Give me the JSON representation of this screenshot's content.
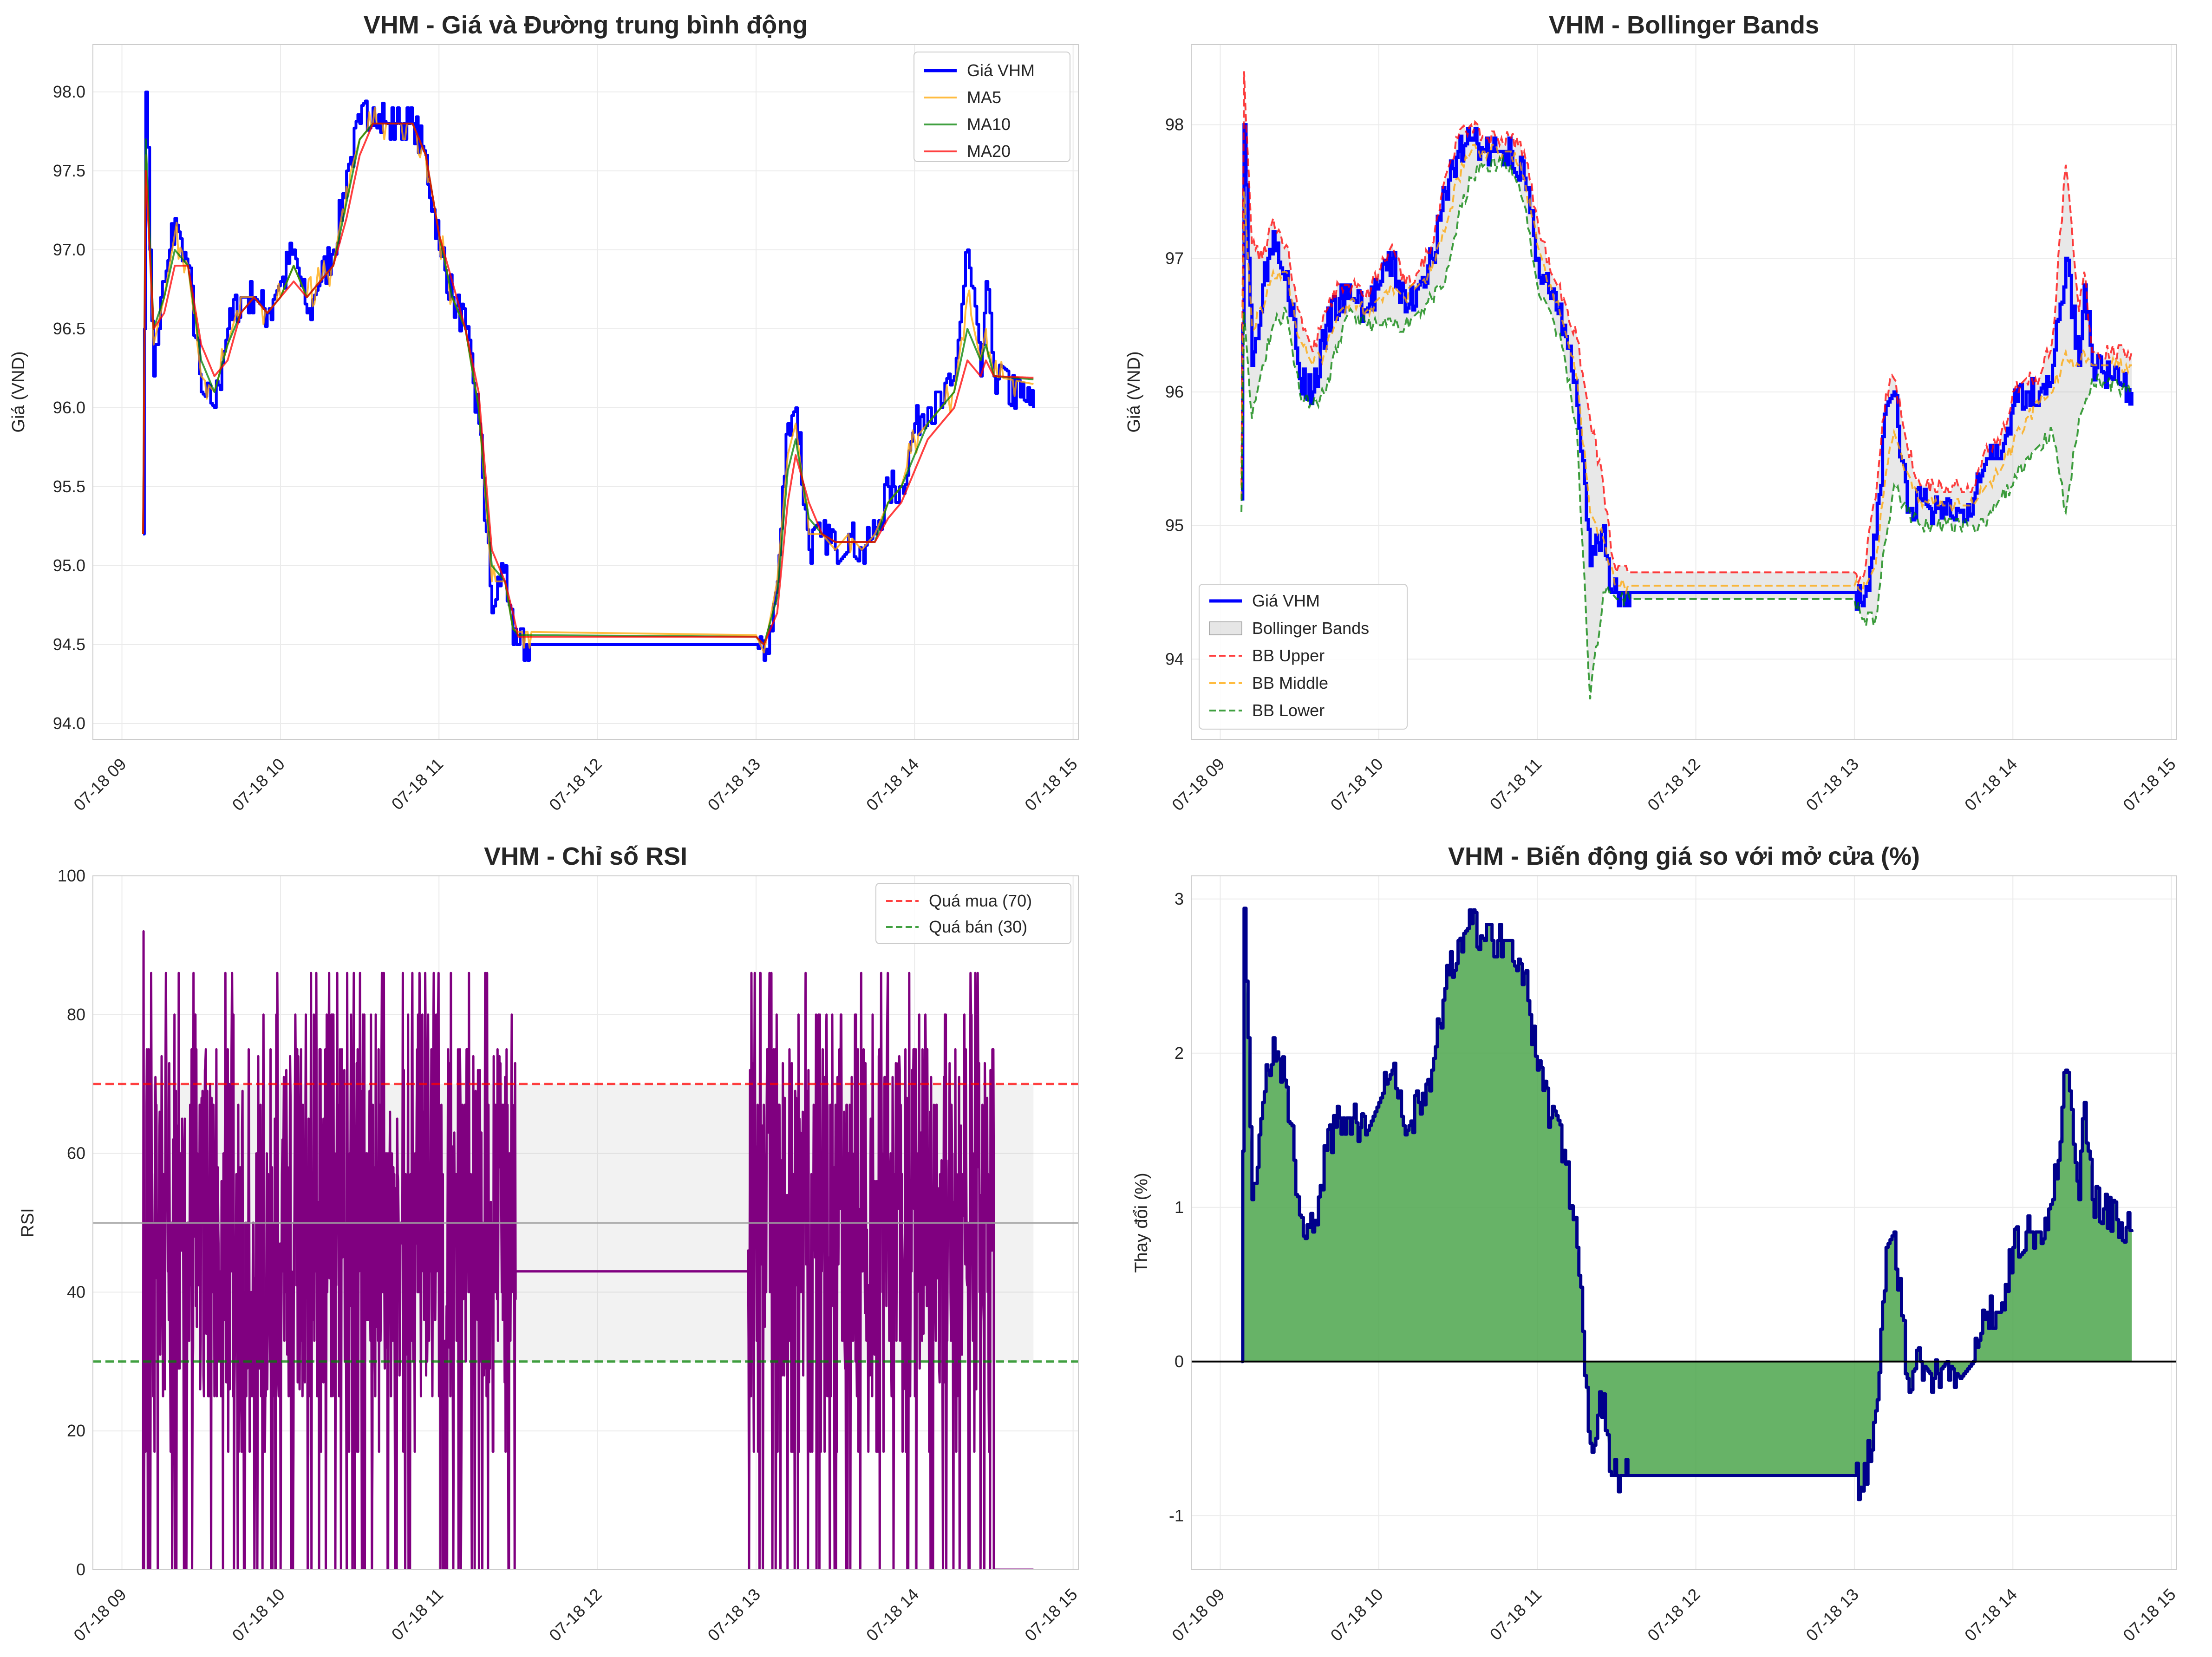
{
  "chart_data": [
    {
      "type": "line",
      "title": "VHM - Giá và Đường trung bình động",
      "xlabel": "",
      "ylabel": "Giá (VND)",
      "x_ticks": [
        "07-18 09",
        "07-18 10",
        "07-18 11",
        "07-18 12",
        "07-18 13",
        "07-18 14",
        "07-18 15"
      ],
      "y_ticks": [
        "94.0",
        "94.5",
        "95.0",
        "95.5",
        "96.0",
        "96.5",
        "97.0",
        "97.5",
        "98.0"
      ],
      "ylim": [
        93.9,
        98.3
      ],
      "grid": true,
      "legend": "top-right",
      "x": [
        "09:08",
        "09:09",
        "09:12",
        "09:16",
        "09:20",
        "09:25",
        "09:30",
        "09:35",
        "09:40",
        "09:45",
        "09:50",
        "09:55",
        "10:00",
        "10:05",
        "10:10",
        "10:15",
        "10:20",
        "10:25",
        "10:30",
        "10:35",
        "10:40",
        "10:45",
        "10:50",
        "10:55",
        "11:00",
        "11:05",
        "11:10",
        "11:15",
        "11:20",
        "11:25",
        "11:28",
        "11:30",
        "11:35",
        "13:00",
        "13:03",
        "13:08",
        "13:12",
        "13:15",
        "13:20",
        "13:25",
        "13:30",
        "13:35",
        "13:40",
        "13:45",
        "13:50",
        "13:55",
        "14:00",
        "14:05",
        "14:10",
        "14:15",
        "14:20",
        "14:25",
        "14:27",
        "14:30",
        "14:45"
      ],
      "series": [
        {
          "name": "Giá VHM",
          "color": "#0000ff",
          "values": [
            95.2,
            98.0,
            96.2,
            96.8,
            97.2,
            96.9,
            96.1,
            96.0,
            96.5,
            96.7,
            96.7,
            96.6,
            96.8,
            97.0,
            96.6,
            96.8,
            97.0,
            97.5,
            97.8,
            97.9,
            97.8,
            97.8,
            97.8,
            97.6,
            97.0,
            96.7,
            96.5,
            95.9,
            94.7,
            95.0,
            94.5,
            94.5,
            94.5,
            94.5,
            94.4,
            94.9,
            95.9,
            96.0,
            95.1,
            95.2,
            95.1,
            95.2,
            95.1,
            95.2,
            95.5,
            95.5,
            95.9,
            96.0,
            96.0,
            96.2,
            97.0,
            96.2,
            96.8,
            96.2,
            96.0
          ]
        },
        {
          "name": "MA5",
          "color": "#ffa500",
          "values": [
            95.2,
            97.6,
            96.4,
            96.7,
            97.1,
            96.9,
            96.2,
            96.1,
            96.4,
            96.7,
            96.7,
            96.6,
            96.7,
            96.9,
            96.7,
            96.8,
            96.9,
            97.4,
            97.7,
            97.8,
            97.8,
            97.8,
            97.8,
            97.6,
            97.1,
            96.7,
            96.5,
            96.0,
            94.9,
            94.9,
            94.6,
            94.58,
            94.58,
            94.56,
            94.45,
            94.9,
            95.7,
            95.9,
            95.2,
            95.2,
            95.1,
            95.2,
            95.1,
            95.2,
            95.4,
            95.5,
            95.8,
            95.9,
            96.0,
            96.1,
            96.7,
            96.3,
            96.5,
            96.2,
            96.15
          ]
        },
        {
          "name": "MA10",
          "color": "#008000",
          "values": [
            95.2,
            97.7,
            96.5,
            96.7,
            97.0,
            96.9,
            96.3,
            96.1,
            96.4,
            96.6,
            96.7,
            96.6,
            96.7,
            96.9,
            96.7,
            96.8,
            96.9,
            97.3,
            97.7,
            97.8,
            97.8,
            97.8,
            97.8,
            97.6,
            97.1,
            96.7,
            96.5,
            96.0,
            95.0,
            94.9,
            94.6,
            94.56,
            94.56,
            94.55,
            94.5,
            94.8,
            95.6,
            95.8,
            95.3,
            95.2,
            95.15,
            95.15,
            95.15,
            95.15,
            95.4,
            95.5,
            95.7,
            95.9,
            96.0,
            96.1,
            96.5,
            96.3,
            96.4,
            96.2,
            96.18
          ]
        },
        {
          "name": "MA20",
          "color": "#ff0000",
          "values": [
            95.2,
            97.5,
            96.5,
            96.6,
            96.9,
            96.9,
            96.4,
            96.2,
            96.3,
            96.6,
            96.7,
            96.6,
            96.7,
            96.8,
            96.7,
            96.8,
            96.9,
            97.2,
            97.6,
            97.8,
            97.8,
            97.8,
            97.8,
            97.6,
            97.1,
            96.8,
            96.5,
            96.1,
            95.1,
            94.9,
            94.7,
            94.55,
            94.55,
            94.55,
            94.5,
            94.7,
            95.4,
            95.7,
            95.4,
            95.2,
            95.15,
            95.15,
            95.15,
            95.15,
            95.3,
            95.4,
            95.6,
            95.8,
            95.9,
            96.0,
            96.3,
            96.2,
            96.3,
            96.2,
            96.19
          ]
        }
      ]
    },
    {
      "type": "line",
      "title": "VHM - Bollinger Bands",
      "xlabel": "",
      "ylabel": "Giá (VND)",
      "x_ticks": [
        "07-18 09",
        "07-18 10",
        "07-18 11",
        "07-18 12",
        "07-18 13",
        "07-18 14",
        "07-18 15"
      ],
      "y_ticks": [
        "94",
        "95",
        "96",
        "97",
        "98"
      ],
      "ylim": [
        93.4,
        98.6
      ],
      "grid": true,
      "legend": "bottom-left",
      "band_legend": "Bollinger Bands",
      "x": [
        "09:08",
        "09:09",
        "09:12",
        "09:16",
        "09:20",
        "09:25",
        "09:30",
        "09:35",
        "09:40",
        "09:45",
        "09:50",
        "09:55",
        "10:00",
        "10:05",
        "10:10",
        "10:15",
        "10:20",
        "10:25",
        "10:30",
        "10:35",
        "10:40",
        "10:45",
        "10:50",
        "10:55",
        "11:00",
        "11:05",
        "11:10",
        "11:15",
        "11:20",
        "11:25",
        "11:28",
        "11:30",
        "11:35",
        "13:00",
        "13:03",
        "13:08",
        "13:12",
        "13:15",
        "13:20",
        "13:25",
        "13:30",
        "13:35",
        "13:40",
        "13:45",
        "13:50",
        "13:55",
        "14:00",
        "14:05",
        "14:10",
        "14:15",
        "14:20",
        "14:25",
        "14:27",
        "14:30",
        "14:45"
      ],
      "series": [
        {
          "name": "Giá VHM",
          "color": "#0000ff",
          "values": [
            95.2,
            98.0,
            96.2,
            96.8,
            97.2,
            96.9,
            96.1,
            96.0,
            96.5,
            96.7,
            96.7,
            96.6,
            96.8,
            97.0,
            96.6,
            96.8,
            97.0,
            97.5,
            97.8,
            97.9,
            97.8,
            97.8,
            97.8,
            97.6,
            97.0,
            96.7,
            96.5,
            95.9,
            94.7,
            95.0,
            94.5,
            94.5,
            94.5,
            94.5,
            94.4,
            94.9,
            95.9,
            96.0,
            95.1,
            95.2,
            95.1,
            95.2,
            95.1,
            95.2,
            95.5,
            95.5,
            95.9,
            96.0,
            96.0,
            96.2,
            97.0,
            96.2,
            96.8,
            96.2,
            96.0
          ]
        },
        {
          "name": "BB Upper",
          "color": "#ff0000",
          "values": [
            95.3,
            98.4,
            97.1,
            97.0,
            97.3,
            97.1,
            96.6,
            96.3,
            96.6,
            96.8,
            96.8,
            96.7,
            96.9,
            97.1,
            96.8,
            96.9,
            97.1,
            97.6,
            97.9,
            98.0,
            97.9,
            97.9,
            97.9,
            97.8,
            97.3,
            96.9,
            96.7,
            96.4,
            95.8,
            95.3,
            94.8,
            94.65,
            94.65,
            94.65,
            94.6,
            95.2,
            96.0,
            96.1,
            95.6,
            95.3,
            95.3,
            95.3,
            95.3,
            95.3,
            95.6,
            95.6,
            96.0,
            96.1,
            96.1,
            96.4,
            97.7,
            96.6,
            96.9,
            96.3,
            96.3
          ]
        },
        {
          "name": "BB Middle",
          "color": "#ffa500",
          "values": [
            95.2,
            97.5,
            96.5,
            96.6,
            96.9,
            96.9,
            96.4,
            96.2,
            96.3,
            96.6,
            96.7,
            96.6,
            96.7,
            96.8,
            96.7,
            96.8,
            96.9,
            97.2,
            97.6,
            97.8,
            97.8,
            97.8,
            97.8,
            97.6,
            97.1,
            96.8,
            96.5,
            96.1,
            95.1,
            94.9,
            94.7,
            94.55,
            94.55,
            94.55,
            94.5,
            94.7,
            95.4,
            95.7,
            95.4,
            95.2,
            95.15,
            95.15,
            95.15,
            95.15,
            95.3,
            95.4,
            95.6,
            95.8,
            95.9,
            96.0,
            96.3,
            96.2,
            96.3,
            96.2,
            96.2
          ]
        },
        {
          "name": "BB Lower",
          "color": "#008000",
          "values": [
            95.1,
            96.6,
            95.8,
            96.2,
            96.5,
            96.6,
            96.0,
            95.9,
            96.0,
            96.4,
            96.6,
            96.5,
            96.5,
            96.5,
            96.5,
            96.6,
            96.7,
            96.8,
            97.3,
            97.6,
            97.7,
            97.7,
            97.7,
            97.4,
            96.8,
            96.6,
            96.3,
            95.7,
            93.7,
            94.5,
            94.5,
            94.45,
            94.45,
            94.45,
            94.3,
            94.3,
            94.9,
            95.3,
            95.1,
            95.0,
            95.0,
            95.0,
            95.0,
            95.0,
            95.0,
            95.2,
            95.3,
            95.5,
            95.6,
            95.7,
            95.1,
            95.8,
            95.9,
            96.1,
            96.0
          ]
        }
      ]
    },
    {
      "type": "line",
      "title": "VHM - Chỉ số RSI",
      "xlabel": "",
      "ylabel": "RSI",
      "x_ticks": [
        "07-18 09",
        "07-18 10",
        "07-18 11",
        "07-18 12",
        "07-18 13",
        "07-18 14",
        "07-18 15"
      ],
      "y_ticks": [
        "0",
        "20",
        "40",
        "60",
        "80",
        "100"
      ],
      "ylim": [
        0,
        100
      ],
      "grid": true,
      "legend": "top-right",
      "reference_lines": [
        {
          "name": "Quá mua (70)",
          "value": 70,
          "color": "#ff0000"
        },
        {
          "name": "Quá bán (30)",
          "value": 30,
          "color": "#008000"
        },
        {
          "name": "",
          "value": 50,
          "color": "#a0a0a0"
        }
      ],
      "band": [
        30,
        70
      ],
      "series": [
        {
          "name": "",
          "color": "#800080",
          "description_free": true,
          "segments": [
            {
              "start": "09:08",
              "end": "11:29",
              "min": 0,
              "max": 92
            },
            {
              "start": "11:29",
              "end": "12:57",
              "flat": 43
            },
            {
              "start": "12:57",
              "end": "14:30",
              "min": 0,
              "max": 86
            },
            {
              "start": "14:30",
              "end": "14:45",
              "flat": 0
            }
          ]
        }
      ]
    },
    {
      "type": "area",
      "title": "VHM - Biến động giá so với mở cửa (%)",
      "xlabel": "",
      "ylabel": "Thay đổi (%)",
      "x_ticks": [
        "07-18 09",
        "07-18 10",
        "07-18 11",
        "07-18 12",
        "07-18 13",
        "07-18 14",
        "07-18 15"
      ],
      "y_ticks": [
        "-1",
        "0",
        "1",
        "2",
        "3"
      ],
      "ylim": [
        -1.35,
        3.15
      ],
      "grid": true,
      "fill_color": "#4ca64c",
      "line_color": "#00008b",
      "x": [
        "09:08",
        "09:09",
        "09:12",
        "09:16",
        "09:20",
        "09:25",
        "09:30",
        "09:35",
        "09:40",
        "09:45",
        "09:50",
        "09:55",
        "10:00",
        "10:05",
        "10:10",
        "10:15",
        "10:20",
        "10:25",
        "10:30",
        "10:35",
        "10:40",
        "10:45",
        "10:50",
        "10:55",
        "11:00",
        "11:05",
        "11:10",
        "11:15",
        "11:20",
        "11:25",
        "11:28",
        "11:30",
        "11:35",
        "13:00",
        "13:03",
        "13:08",
        "13:12",
        "13:15",
        "13:20",
        "13:25",
        "13:30",
        "13:35",
        "13:40",
        "13:45",
        "13:50",
        "13:55",
        "14:00",
        "14:05",
        "14:10",
        "14:15",
        "14:20",
        "14:25",
        "14:27",
        "14:30",
        "14:45"
      ],
      "values": [
        0,
        2.94,
        1.05,
        1.68,
        2.1,
        1.78,
        0.95,
        0.84,
        1.37,
        1.58,
        1.58,
        1.47,
        1.68,
        1.89,
        1.47,
        1.68,
        1.89,
        2.42,
        2.73,
        2.84,
        2.73,
        2.73,
        2.73,
        2.52,
        1.89,
        1.58,
        1.37,
        0.74,
        -0.53,
        -0.21,
        -0.74,
        -0.74,
        -0.74,
        -0.74,
        -0.84,
        -0.32,
        0.74,
        0.84,
        -0.11,
        0,
        -0.11,
        0,
        -0.11,
        0,
        0.32,
        0.32,
        0.74,
        0.84,
        0.84,
        1.05,
        1.89,
        1.05,
        1.68,
        1.05,
        0.84
      ]
    }
  ]
}
